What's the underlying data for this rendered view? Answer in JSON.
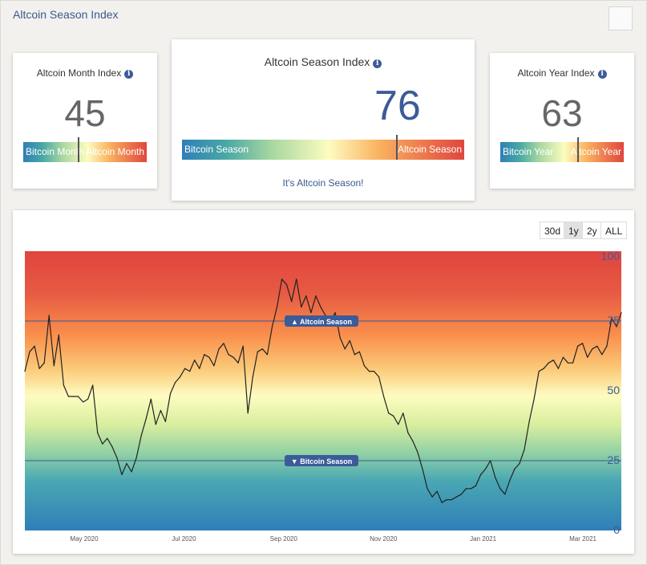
{
  "page_title": "Altcoin Season Index",
  "cards": {
    "month": {
      "title": "Altcoin Month Index",
      "value": "45",
      "value_fraction": 0.45,
      "left_label": "Bitcoin Month",
      "right_label": "Altcoin Month"
    },
    "season": {
      "title": "Altcoin Season Index",
      "value": "76",
      "value_fraction": 0.76,
      "left_label": "Bitcoin Season",
      "right_label": "Altcoin Season",
      "status": "It's Altcoin Season!"
    },
    "year": {
      "title": "Altcoin Year Index",
      "value": "63",
      "value_fraction": 0.63,
      "left_label": "Bitcoin Year",
      "right_label": "Altcoin Year"
    }
  },
  "range_buttons": [
    "30d",
    "1y",
    "2y",
    "ALL"
  ],
  "active_range": "1y",
  "colors": {
    "accent": "#3b5b99",
    "top": "#e0453f",
    "bottom": "#2f7fb8"
  },
  "chart_data": {
    "type": "line",
    "x_tick_labels": [
      "May 2020",
      "Jul 2020",
      "Sep 2020",
      "Nov 2020",
      "Jan 2021",
      "Mar 2021"
    ],
    "y_tick_labels": [
      "0",
      "25",
      "50",
      "75",
      "100"
    ],
    "ylim": [
      0,
      100
    ],
    "plot_lines": [
      {
        "label": "▲ Altcoin Season",
        "value": 75
      },
      {
        "label": "▼ Bitcoin Season",
        "value": 25
      }
    ],
    "series": [
      {
        "values": [
          57,
          64,
          66,
          58,
          60,
          77,
          59,
          70,
          52,
          48,
          48,
          48,
          46,
          47,
          52,
          35,
          31,
          33,
          30,
          26,
          20,
          24,
          21,
          26,
          34,
          40,
          47,
          38,
          43,
          39,
          49,
          53,
          55,
          58,
          57,
          61,
          58,
          63,
          62,
          59,
          65,
          67,
          63,
          62,
          60,
          66,
          42,
          55,
          64,
          65,
          63,
          73,
          80,
          90,
          88,
          82,
          90,
          80,
          84,
          78,
          84,
          80,
          77,
          75,
          78,
          69,
          65,
          68,
          63,
          64,
          59,
          57,
          57,
          55,
          48,
          42,
          41,
          38,
          42,
          35,
          32,
          28,
          22,
          15,
          12,
          14,
          10,
          11,
          11,
          12,
          13,
          15,
          15,
          16,
          20,
          22,
          25,
          19,
          15,
          13,
          18,
          22,
          24,
          29,
          39,
          47,
          57,
          58,
          60,
          61,
          58,
          62,
          60,
          60,
          66,
          67,
          62,
          65,
          66,
          63,
          66,
          76,
          73,
          78
        ]
      }
    ]
  }
}
